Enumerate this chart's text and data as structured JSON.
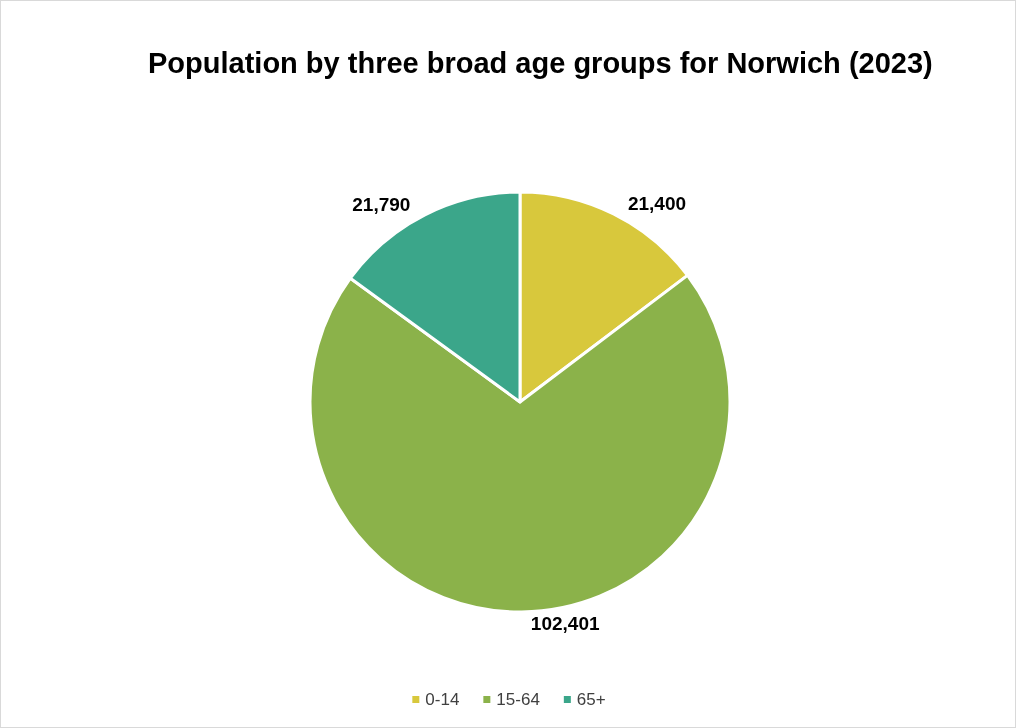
{
  "chart_data": {
    "type": "pie",
    "title": "Population by three broad age groups for Norwich (2023)",
    "categories": [
      "0-14",
      "15-64",
      "65+"
    ],
    "values": [
      21400,
      102401,
      21790
    ],
    "colors": [
      "#d8c83c",
      "#8bb24a",
      "#3ba68a"
    ],
    "value_labels": [
      "21,400",
      "102,401",
      "21,790"
    ],
    "legend": "bottom"
  }
}
